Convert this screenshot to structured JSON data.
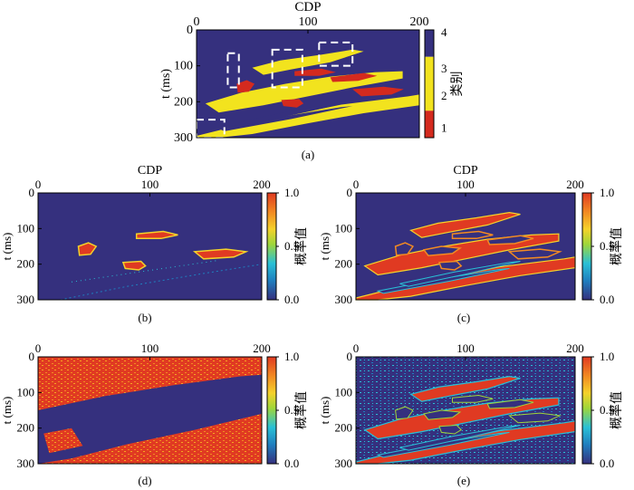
{
  "colors": {
    "class1": "#d42a1e",
    "class2": "#f2e31e",
    "class3": "#f2e31e",
    "class4": "#35307e",
    "background": "#35307e",
    "prob_scale": [
      "#35307e",
      "#1f7fbf",
      "#29c0d6",
      "#9fd63a",
      "#f4d22a",
      "#f28a22",
      "#e03a22"
    ],
    "box": "#ffffff",
    "frame": "#000000"
  },
  "chart_data": [
    {
      "type": "heatmap",
      "panel": "a",
      "caption": "(a)",
      "xlabel": "CDP",
      "ylabel": "t (ms)",
      "xlim": [
        0,
        200
      ],
      "ylim": [
        0,
        300
      ],
      "xticks": [
        0,
        100,
        200
      ],
      "yticks": [
        0,
        100,
        200,
        300
      ],
      "colorbar": {
        "label": "类别",
        "ticks": [
          "1",
          "2",
          "3",
          "4"
        ]
      },
      "annotations": "white dashed rectangles mark anomalies",
      "highlight_boxes": [
        {
          "cdp": [
            28,
            38
          ],
          "t": [
            65,
            160
          ]
        },
        {
          "cdp": [
            68,
            95
          ],
          "t": [
            55,
            160
          ]
        },
        {
          "cdp": [
            110,
            140
          ],
          "t": [
            35,
            100
          ]
        },
        {
          "cdp": [
            0,
            25
          ],
          "t": [
            250,
            300
          ]
        }
      ]
    },
    {
      "type": "heatmap",
      "panel": "b",
      "caption": "(b)",
      "xlabel": "CDP",
      "ylabel": "t (ms)",
      "xlim": [
        0,
        200
      ],
      "ylim": [
        0,
        300
      ],
      "xticks": [
        0,
        100,
        200
      ],
      "yticks": [
        0,
        100,
        200,
        300
      ],
      "colorbar": {
        "label": "概率值",
        "ticks": [
          "0.0",
          "0.5",
          "1.0"
        ]
      }
    },
    {
      "type": "heatmap",
      "panel": "c",
      "caption": "(c)",
      "xlabel": "CDP",
      "ylabel": "t (ms)",
      "xlim": [
        0,
        200
      ],
      "ylim": [
        0,
        300
      ],
      "xticks": [
        0,
        100,
        200
      ],
      "yticks": [
        0,
        100,
        200,
        300
      ],
      "colorbar": {
        "label": "概率值",
        "ticks": [
          "0.0",
          "0.5",
          "1.0"
        ]
      }
    },
    {
      "type": "heatmap",
      "panel": "d",
      "caption": "(d)",
      "xlabel": "",
      "ylabel": "t (ms)",
      "xlim": [
        0,
        200
      ],
      "ylim": [
        0,
        300
      ],
      "xticks": [
        0,
        100,
        200
      ],
      "yticks": [
        0,
        100,
        200,
        300
      ],
      "colorbar": {
        "label": "概率值",
        "ticks": [
          "0.0",
          "0.5",
          "1.0"
        ]
      }
    },
    {
      "type": "heatmap",
      "panel": "e",
      "caption": "(e)",
      "xlabel": "",
      "ylabel": "t (ms)",
      "xlim": [
        0,
        200
      ],
      "ylim": [
        0,
        300
      ],
      "xticks": [
        0,
        100,
        200
      ],
      "yticks": [
        0,
        100,
        200,
        300
      ],
      "colorbar": {
        "label": "概率值",
        "ticks": [
          "0.0",
          "0.5",
          "1.0"
        ]
      }
    }
  ]
}
